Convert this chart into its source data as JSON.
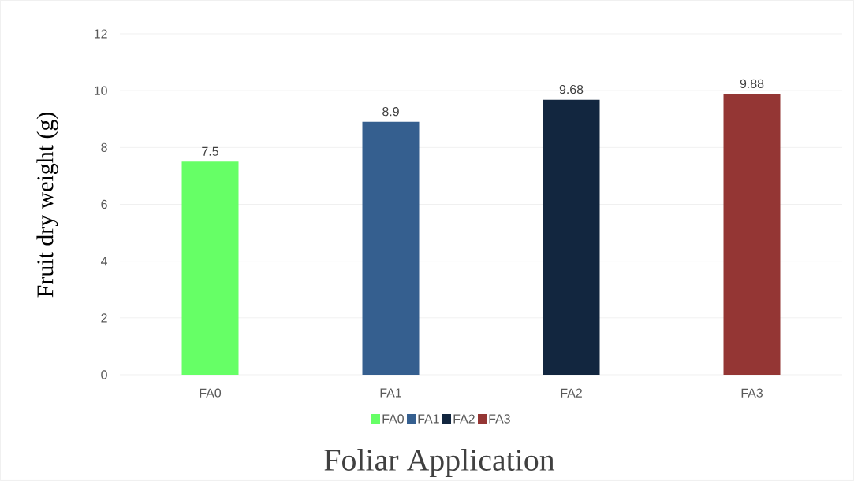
{
  "chart_data": {
    "type": "bar",
    "xlabel": "Foliar Application",
    "ylabel": "Fruit dry weight (g)",
    "categories": [
      "FA0",
      "FA1",
      "FA2",
      "FA3"
    ],
    "series": [
      {
        "name": "FA0",
        "color": "#66ff66",
        "values": [
          7.5,
          null,
          null,
          null
        ]
      },
      {
        "name": "FA1",
        "color": "#355f8f",
        "values": [
          null,
          8.9,
          null,
          null
        ]
      },
      {
        "name": "FA2",
        "color": "#12263f",
        "values": [
          null,
          null,
          9.68,
          null
        ]
      },
      {
        "name": "FA3",
        "color": "#943634",
        "values": [
          null,
          null,
          null,
          9.88
        ]
      }
    ],
    "ylim": [
      0,
      12
    ],
    "yticks": [
      0,
      2,
      4,
      6,
      8,
      10,
      12
    ],
    "grid": "y",
    "data_labels": true,
    "legend": "bottom"
  }
}
